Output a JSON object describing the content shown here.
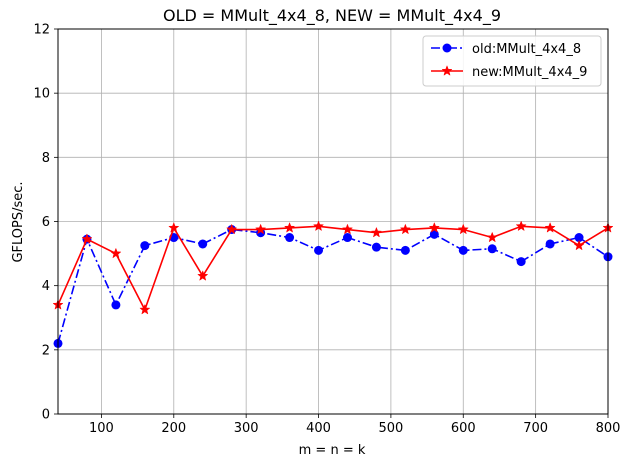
{
  "chart_data": {
    "type": "line",
    "title": "OLD = MMult_4x4_8, NEW = MMult_4x4_9",
    "xlabel": "m = n = k",
    "ylabel": "GFLOPS/sec.",
    "xlim": [
      40,
      800
    ],
    "ylim": [
      0,
      12
    ],
    "xticks": [
      100,
      200,
      300,
      400,
      500,
      600,
      700,
      800
    ],
    "yticks": [
      0,
      2,
      4,
      6,
      8,
      10,
      12
    ],
    "grid": true,
    "legend_position": "upper right",
    "x": [
      40,
      80,
      120,
      160,
      200,
      240,
      280,
      320,
      360,
      400,
      440,
      480,
      520,
      560,
      600,
      640,
      680,
      720,
      760,
      800
    ],
    "series": [
      {
        "name": "old:MMult_4x4_8",
        "color": "#0000ff",
        "linestyle": "dashdot",
        "marker": "circle",
        "values": [
          2.2,
          5.45,
          3.4,
          5.25,
          5.5,
          5.3,
          5.75,
          5.65,
          5.5,
          5.1,
          5.5,
          5.2,
          5.1,
          5.6,
          5.1,
          5.15,
          4.75,
          5.3,
          5.5,
          4.9
        ]
      },
      {
        "name": "new:MMult_4x4_9",
        "color": "#ff0000",
        "linestyle": "solid",
        "marker": "star",
        "values": [
          3.4,
          5.45,
          5.0,
          3.25,
          5.8,
          4.3,
          5.75,
          5.75,
          5.8,
          5.85,
          5.75,
          5.65,
          5.75,
          5.8,
          5.75,
          5.5,
          5.85,
          5.8,
          5.25,
          5.8
        ]
      }
    ]
  }
}
